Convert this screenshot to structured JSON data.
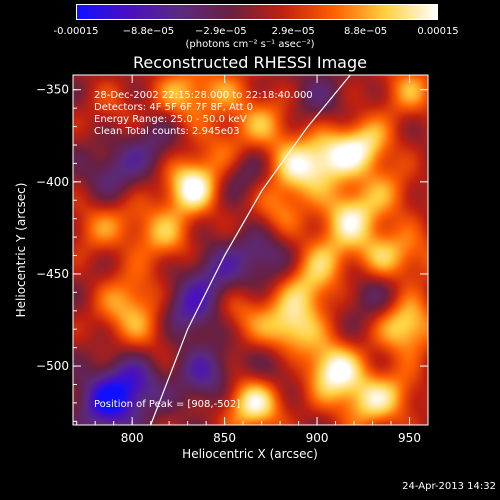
{
  "colorbar": {
    "ticks": [
      "-0.00015",
      "−8.8e−05",
      "−2.9e−05",
      "2.9e−05",
      "8.8e−05",
      "0.00015"
    ],
    "label": "(photons cm⁻² s⁻¹ asec⁻²)",
    "colors": [
      "#1010ff",
      "#4a10c0",
      "#5a2a80",
      "#6a2040",
      "#c02010",
      "#ff6000",
      "#ffd040",
      "#ffffff"
    ]
  },
  "chart": {
    "title": "Reconstructed RHESSI Image",
    "xlabel": "Heliocentric X (arcsec)",
    "ylabel": "Heliocentric Y (arcsec)",
    "info": [
      "28-Dec-2002 22:15:28.000 to 22:18:40.000",
      "Detectors: 4F 5F 6F 7F 8F, Att 0",
      "Energy Range: 25.0 - 50.0 keV",
      "Clean     Total counts: 2.945e03"
    ],
    "peak_text": "Position of Peak = [908,-502]",
    "footer": "24-Apr-2013 14:32"
  },
  "chart_data": {
    "type": "heatmap",
    "title": "Reconstructed RHESSI Image",
    "xlabel": "Heliocentric X (arcsec)",
    "ylabel": "Heliocentric Y (arcsec)",
    "xlim": [
      768,
      960
    ],
    "ylim": [
      -532,
      -342
    ],
    "xticks": [
      800,
      850,
      900,
      950
    ],
    "yticks": [
      -350,
      -400,
      -450,
      -500
    ],
    "clim": [
      -0.00015,
      0.00015
    ],
    "peak": [
      908,
      -502
    ],
    "limb": [
      [
        810,
        -532
      ],
      [
        830,
        -480
      ],
      [
        850,
        -440
      ],
      [
        870,
        -405
      ],
      [
        895,
        -370
      ],
      [
        918,
        -342
      ]
    ],
    "blobs": [
      {
        "x": 832,
        "y": -402,
        "v": 0.00015
      },
      {
        "x": 827,
        "y": -352,
        "v": 9e-05
      },
      {
        "x": 850,
        "y": -382,
        "v": 6e-05
      },
      {
        "x": 872,
        "y": -368,
        "v": 8e-05
      },
      {
        "x": 878,
        "y": -415,
        "v": 7e-05
      },
      {
        "x": 888,
        "y": -393,
        "v": 0.0001
      },
      {
        "x": 905,
        "y": -387,
        "v": 0.00011
      },
      {
        "x": 925,
        "y": -380,
        "v": 0.00012
      },
      {
        "x": 918,
        "y": -418,
        "v": 0.00012
      },
      {
        "x": 935,
        "y": -440,
        "v": 9e-05
      },
      {
        "x": 905,
        "y": -440,
        "v": 7e-05
      },
      {
        "x": 895,
        "y": -458,
        "v": 9e-05
      },
      {
        "x": 885,
        "y": -480,
        "v": 0.00013
      },
      {
        "x": 948,
        "y": -478,
        "v": 0.00013
      },
      {
        "x": 908,
        "y": -502,
        "v": 0.00015
      },
      {
        "x": 925,
        "y": -520,
        "v": 9e-05
      },
      {
        "x": 870,
        "y": -520,
        "v": 8e-05
      },
      {
        "x": 942,
        "y": -515,
        "v": 7e-05
      },
      {
        "x": 800,
        "y": -420,
        "v": 4e-05
      },
      {
        "x": 801,
        "y": -460,
        "v": 6e-05
      },
      {
        "x": 810,
        "y": -480,
        "v": 5e-05
      },
      {
        "x": 818,
        "y": -430,
        "v": 8e-05
      },
      {
        "x": 780,
        "y": -425,
        "v": 6e-05
      },
      {
        "x": 792,
        "y": -472,
        "v": 5e-05
      },
      {
        "x": 860,
        "y": -470,
        "v": 6e-05
      },
      {
        "x": 790,
        "y": -360,
        "v": 4e-05
      },
      {
        "x": 950,
        "y": -350,
        "v": 8e-05
      },
      {
        "x": 850,
        "y": -350,
        "v": 6e-05
      },
      {
        "x": 940,
        "y": -405,
        "v": 6e-05
      },
      {
        "x": 955,
        "y": -440,
        "v": 5e-05
      },
      {
        "x": 860,
        "y": -520,
        "v": 7e-05
      },
      {
        "x": 786,
        "y": -520,
        "v": -0.00012
      },
      {
        "x": 800,
        "y": -510,
        "v": -9e-05
      },
      {
        "x": 840,
        "y": -505,
        "v": -8e-05
      },
      {
        "x": 830,
        "y": -470,
        "v": -9e-05
      },
      {
        "x": 845,
        "y": -450,
        "v": -7e-05
      },
      {
        "x": 870,
        "y": -440,
        "v": -7e-05
      },
      {
        "x": 790,
        "y": -395,
        "v": -6e-05
      },
      {
        "x": 810,
        "y": -380,
        "v": -5e-05
      },
      {
        "x": 860,
        "y": -395,
        "v": -6e-05
      },
      {
        "x": 880,
        "y": -500,
        "v": -5e-05
      },
      {
        "x": 930,
        "y": -460,
        "v": -5e-05
      },
      {
        "x": 900,
        "y": -355,
        "v": -4e-05
      }
    ]
  }
}
